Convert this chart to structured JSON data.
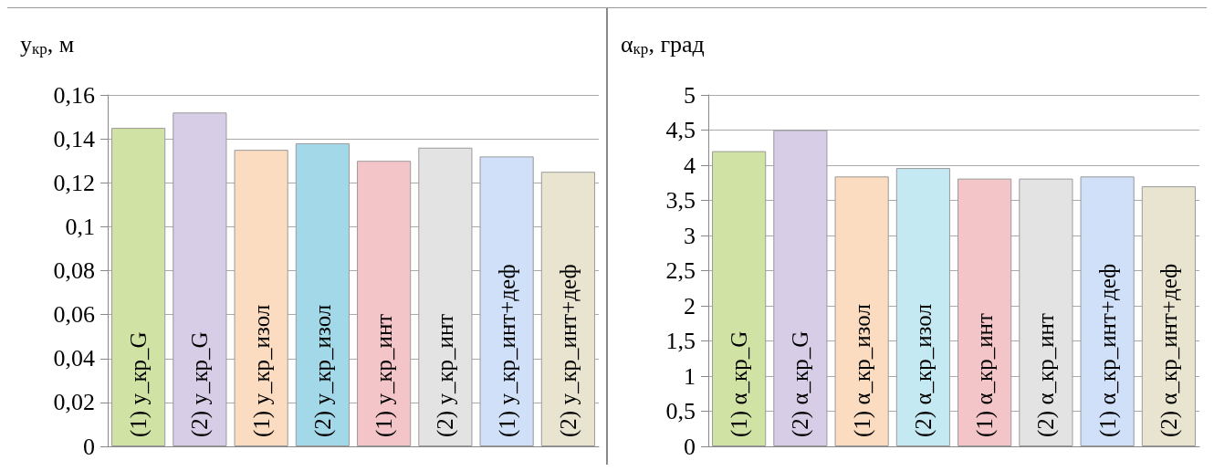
{
  "chart_data": [
    {
      "type": "bar",
      "ylabel": "y$_{кр}$, м",
      "categories": [
        "(1) y_кр_G",
        "(2) y_кр_G",
        "(1) y_кр_изол",
        "(2) y_кр_изол",
        "(1) y_кр_инт",
        "(2) y_кр_инт",
        "(1) y_кр_инт+деф",
        "(2) y_кр_инт+деф"
      ],
      "values": [
        0.145,
        0.152,
        0.135,
        0.138,
        0.13,
        0.136,
        0.132,
        0.125
      ],
      "colors": [
        "#d1e3a4",
        "#d7cde6",
        "#fcdcc0",
        "#a3d8e8",
        "#f4c5c8",
        "#e3e3e3",
        "#cfe0f8",
        "#e8e4d0"
      ],
      "ylim": [
        0,
        0.16
      ],
      "yticks": [
        0,
        {
          "value": 0.02,
          "label": "0,02"
        },
        {
          "value": 0.04,
          "label": "0,04"
        },
        {
          "value": 0.06,
          "label": "0,06"
        },
        {
          "value": 0.08,
          "label": "0,08"
        },
        {
          "value": 0.1,
          "label": "0,1"
        },
        {
          "value": 0.12,
          "label": "0,12"
        },
        {
          "value": 0.14,
          "label": "0,14"
        },
        {
          "value": 0.16,
          "label": "0,16"
        }
      ],
      "grid": "y"
    },
    {
      "type": "bar",
      "ylabel": "α$_{кр}$, град",
      "categories": [
        "(1) α_кр_G",
        "(2) α_кр_G",
        "(1) α_кр_изол",
        "(2) α_кр_изол",
        "(1) α_кр_инт",
        "(2) α_кр_инт",
        "(1) α_кр_инт+деф",
        "(2) α_кр_инт+деф"
      ],
      "values": [
        4.2,
        4.5,
        3.84,
        3.96,
        3.81,
        3.81,
        3.84,
        3.7
      ],
      "colors": [
        "#d1e3a4",
        "#d7cde6",
        "#fcdcc0",
        "#c5e9f2",
        "#f4c5c8",
        "#e3e3e3",
        "#cfe0f8",
        "#e8e4d0"
      ],
      "ylim": [
        0,
        5
      ],
      "yticks": [
        0,
        {
          "value": 0.5,
          "label": "0,5"
        },
        1,
        {
          "value": 1.5,
          "label": "1,5"
        },
        2,
        {
          "value": 2.5,
          "label": "2,5"
        },
        3,
        {
          "value": 3.5,
          "label": "3,5"
        },
        4,
        {
          "value": 4.5,
          "label": "4,5"
        },
        5
      ],
      "grid": "y"
    }
  ]
}
